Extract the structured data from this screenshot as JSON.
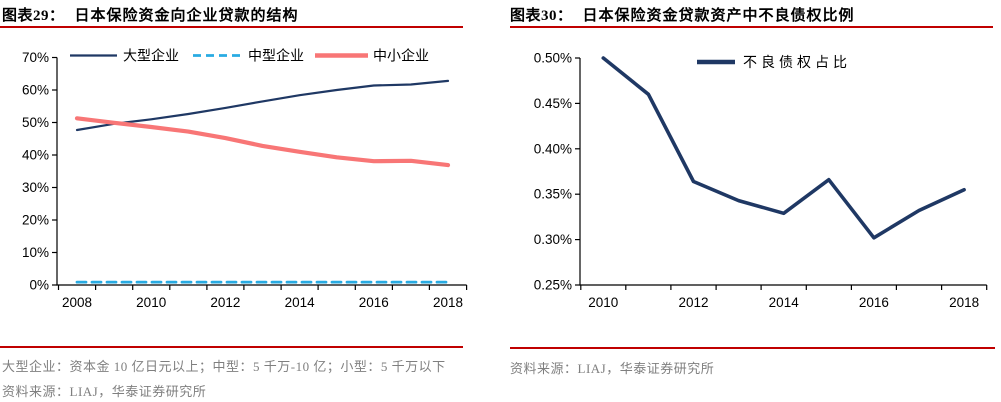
{
  "figures": {
    "left": {
      "caption": "图表29：",
      "title": "日本保险资金向企业贷款的结构",
      "note": "大型企业：资本金 10 亿日元以上；中型：5 千万-10 亿；小型：5 千万以下",
      "source": "资料来源：LIAJ，华泰证券研究所"
    },
    "right": {
      "caption": "图表30：",
      "title": "日本保险资金贷款资产中不良债权比例",
      "source": "资料来源：LIAJ，华泰证券研究所"
    }
  },
  "colors": {
    "accent_red": "#C00000",
    "navy": "#1F3864",
    "coral": "#F87676",
    "sky_blue": "#29ABE2",
    "gray_text": "#7F7F7F",
    "axis_black": "#000000"
  },
  "chart_data": [
    {
      "type": "line",
      "title": "日本保险资金向企业贷款的结构",
      "x": [
        2008,
        2009,
        2010,
        2011,
        2012,
        2013,
        2014,
        2015,
        2016,
        2017,
        2018
      ],
      "x_tick_labels": [
        "2008",
        "2010",
        "2012",
        "2014",
        "2016",
        "2018"
      ],
      "y_tick_labels": [
        "0%",
        "10%",
        "20%",
        "30%",
        "40%",
        "50%",
        "60%",
        "70%"
      ],
      "ylim": [
        0,
        70
      ],
      "unit": "%",
      "grid": false,
      "legend_position": "top",
      "series": [
        {
          "name": "大型企业",
          "color": "#1F3864",
          "style": "solid",
          "width": 2.2,
          "values": [
            47.7,
            49.6,
            51.0,
            52.6,
            54.5,
            56.5,
            58.4,
            60.0,
            61.4,
            61.7,
            62.8
          ]
        },
        {
          "name": "中型企业",
          "color": "#29ABE2",
          "style": "dashed",
          "width": 2.8,
          "values": [
            0.9,
            0.9,
            0.9,
            0.9,
            0.9,
            0.9,
            0.9,
            0.9,
            0.9,
            0.9,
            0.9
          ]
        },
        {
          "name": "中小企业",
          "color": "#F87676",
          "style": "solid",
          "width": 4.2,
          "values": [
            51.3,
            49.9,
            48.6,
            47.2,
            45.2,
            42.8,
            41.0,
            39.3,
            38.1,
            38.2,
            36.9
          ]
        }
      ]
    },
    {
      "type": "line",
      "title": "日本保险资金贷款资产中不良债权比例",
      "x": [
        2010,
        2011,
        2012,
        2013,
        2014,
        2015,
        2016,
        2017,
        2018
      ],
      "x_tick_labels": [
        "2010",
        "2012",
        "2014",
        "2016",
        "2018"
      ],
      "y_tick_labels": [
        "0.25%",
        "0.30%",
        "0.35%",
        "0.40%",
        "0.45%",
        "0.50%"
      ],
      "ylim": [
        0.25,
        0.5
      ],
      "unit": "%",
      "grid": false,
      "legend_position": "top",
      "series": [
        {
          "name": "不良债权占比",
          "color": "#1F3864",
          "style": "solid",
          "width": 3.6,
          "values": [
            0.5,
            0.46,
            0.364,
            0.343,
            0.329,
            0.366,
            0.302,
            0.332,
            0.355
          ]
        }
      ]
    }
  ]
}
